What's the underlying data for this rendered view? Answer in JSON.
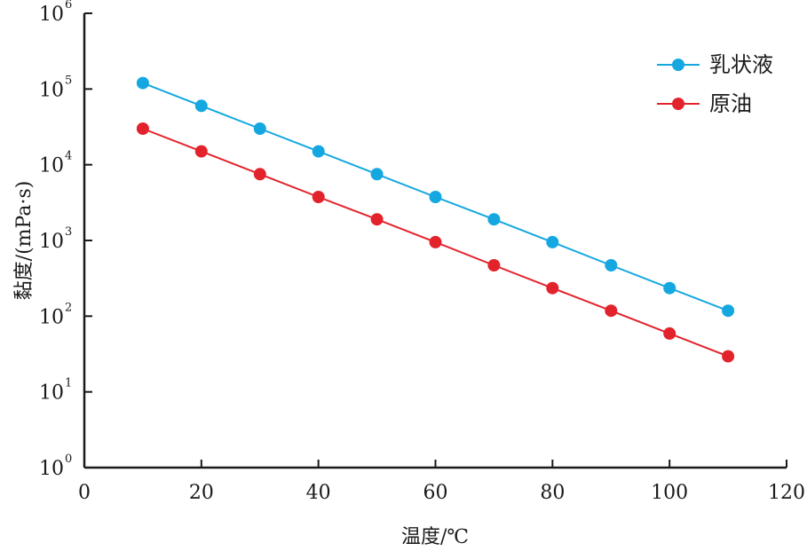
{
  "chart_data": {
    "type": "line",
    "xlabel": "温度/℃",
    "ylabel": "黏度/(mPa·s)",
    "xlim": [
      0,
      120
    ],
    "xticks": [
      "0",
      "20",
      "40",
      "60",
      "80",
      "100",
      "120"
    ],
    "yscale": "log",
    "ylim": [
      1,
      1000000
    ],
    "yticks": [
      {
        "base": "10",
        "exp": "0"
      },
      {
        "base": "10",
        "exp": "1"
      },
      {
        "base": "10",
        "exp": "2"
      },
      {
        "base": "10",
        "exp": "3"
      },
      {
        "base": "10",
        "exp": "4"
      },
      {
        "base": "10",
        "exp": "5"
      },
      {
        "base": "10",
        "exp": "6"
      }
    ],
    "grid": false,
    "legend_position": "top-right",
    "x": [
      10,
      20,
      30,
      40,
      50,
      60,
      70,
      80,
      90,
      100,
      110
    ],
    "series": [
      {
        "name": "乳状液",
        "color": "#15a7e0",
        "values": [
          120000,
          60000,
          30000,
          15000,
          7500,
          3750,
          1900,
          950,
          470,
          235,
          118
        ]
      },
      {
        "name": "原油",
        "color": "#e3232c",
        "values": [
          30000,
          15000,
          7500,
          3750,
          1900,
          950,
          470,
          235,
          118,
          59,
          29.5
        ]
      }
    ]
  }
}
